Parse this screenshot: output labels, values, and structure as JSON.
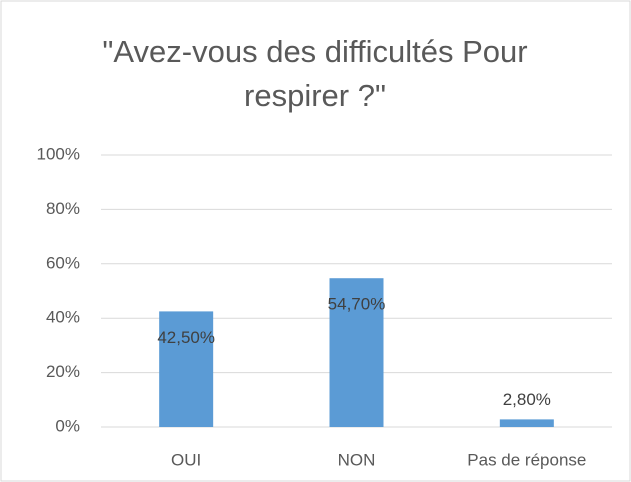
{
  "chart_data": {
    "type": "bar",
    "title": "\"Avez-vous des difficultés Pour respirer ?\"",
    "categories": [
      "OUI",
      "NON",
      "Pas de réponse"
    ],
    "values": [
      42.5,
      54.7,
      2.8
    ],
    "value_labels": [
      "42,50%",
      "54,70%",
      "2,80%"
    ],
    "color": "#5b9bd5",
    "ylim": [
      0,
      100
    ],
    "yticks": [
      {
        "value": 0,
        "label": "0%"
      },
      {
        "value": 20,
        "label": "20%"
      },
      {
        "value": 40,
        "label": "40%"
      },
      {
        "value": 60,
        "label": "60%"
      },
      {
        "value": 80,
        "label": "80%"
      },
      {
        "value": 100,
        "label": "100%"
      }
    ],
    "grid": true
  }
}
